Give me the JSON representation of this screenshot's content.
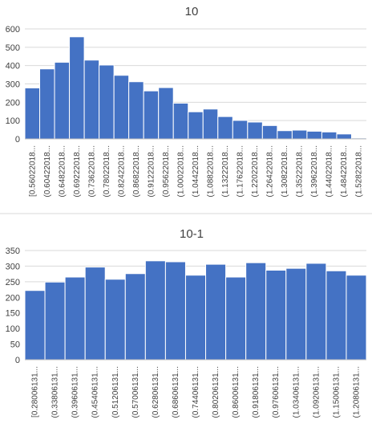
{
  "chart_data": [
    {
      "type": "bar",
      "title": "10",
      "ylim": [
        0,
        600
      ],
      "yticks": [
        "0",
        "100",
        "200",
        "300",
        "400",
        "500",
        "600"
      ],
      "grid": true,
      "legend": "none",
      "color": "#4472C4",
      "categories": [
        "[0.56022018...",
        "(0.60422018...",
        "(0.64822018...",
        "(0.69222018...",
        "(0.73622018...",
        "(0.78022018...",
        "(0.82422018...",
        "(0.86822018...",
        "(0.91222018...",
        "(0.95622018...",
        "(1.00022018...",
        "(1.04422018...",
        "(1.08822018...",
        "(1.13222018...",
        "(1.17622018...",
        "(1.22022018...",
        "(1.26422018...",
        "(1.30822018...",
        "(1.35222018...",
        "(1.39622018...",
        "(1.44022018...",
        "(1.48422018...",
        "(1.52822018..."
      ],
      "values": [
        278,
        382,
        418,
        557,
        430,
        403,
        347,
        312,
        262,
        280,
        195,
        148,
        163,
        122,
        101,
        92,
        73,
        45,
        48,
        42,
        38,
        27,
        5
      ]
    },
    {
      "type": "bar",
      "title": "10-1",
      "ylim": [
        0,
        350
      ],
      "yticks": [
        "0",
        "50",
        "100",
        "150",
        "200",
        "250",
        "300",
        "350"
      ],
      "grid": true,
      "legend": "none",
      "color": "#4472C4",
      "categories": [
        "[0.28006131...",
        "(0.33806131...",
        "(0.39606131...",
        "(0.45406131...",
        "(0.51206131...",
        "(0.57006131...",
        "(0.62806131...",
        "(0.68606131...",
        "(0.74406131...",
        "(0.80206131...",
        "(0.86006131...",
        "(0.91806131...",
        "(0.97606131...",
        "(1.03406131...",
        "(1.09206131...",
        "(1.15006131...",
        "(1.20806131..."
      ],
      "values": [
        222,
        249,
        265,
        297,
        258,
        276,
        317,
        314,
        271,
        306,
        265,
        311,
        287,
        293,
        309,
        285,
        271
      ]
    }
  ]
}
